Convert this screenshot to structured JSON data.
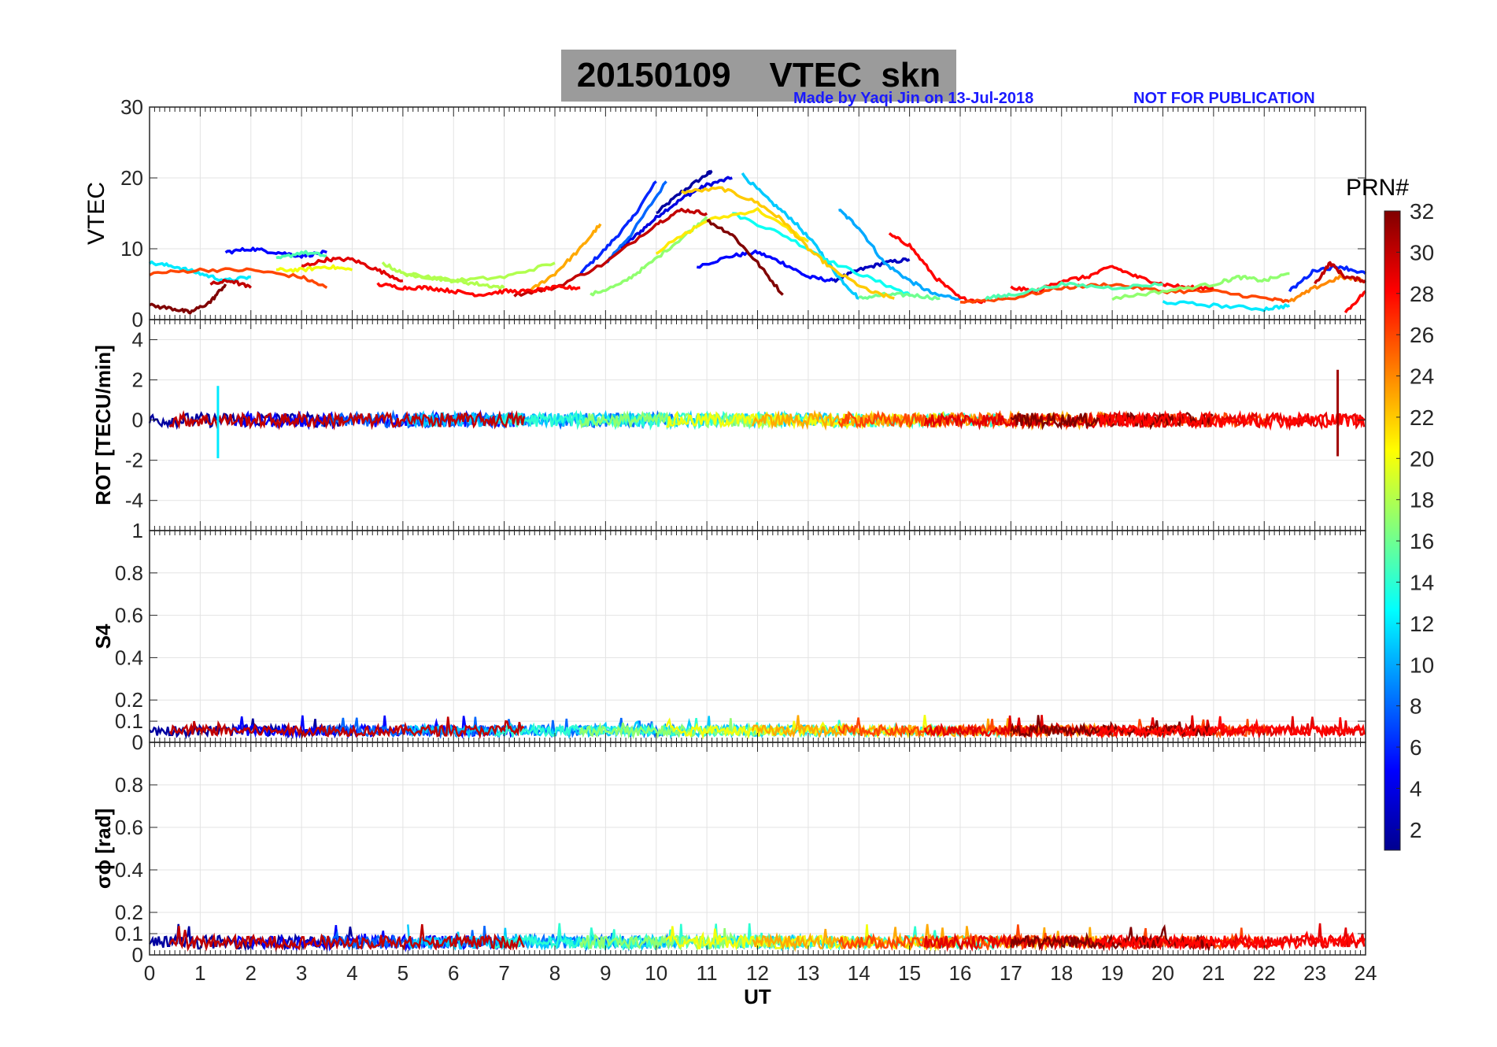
{
  "header": {
    "title": "20150109    VTEC  skn",
    "made_by": "Made by Yaqi Jin on 13-Jul-2018",
    "not_for_publication": "NOT FOR PUBLICATION"
  },
  "chart_data": [
    {
      "type": "line",
      "panel": "vtec",
      "ylabel": "VTEC",
      "ylim": [
        0,
        30
      ],
      "yticks": [
        "0",
        "10",
        "20",
        "30"
      ],
      "grid": true,
      "series": [
        {
          "prn": 2,
          "x": [
            10.0,
            10.5,
            11.0,
            11.1
          ],
          "y": [
            15.0,
            18.0,
            20.5,
            21.0
          ]
        },
        {
          "prn": 4,
          "x": [
            9.3,
            9.7,
            10.1,
            10.6,
            11.0,
            11.5
          ],
          "y": [
            10.0,
            12.5,
            15.0,
            17.5,
            19.0,
            20.0
          ]
        },
        {
          "prn": 6,
          "x": [
            8.5,
            9.0,
            9.5,
            10.0
          ],
          "y": [
            6.5,
            10.0,
            14.0,
            19.5
          ]
        },
        {
          "prn": 8,
          "x": [
            9.0,
            9.5,
            10.2
          ],
          "y": [
            8.0,
            12.0,
            19.5
          ]
        },
        {
          "prn": 5,
          "x": [
            10.8,
            11.5,
            12.0,
            12.5,
            13.0,
            13.5
          ],
          "y": [
            7.5,
            9.0,
            9.5,
            8.0,
            6.0,
            5.5
          ]
        },
        {
          "prn": 3,
          "x": [
            13.5,
            14.0,
            14.5,
            15.0
          ],
          "y": [
            5.5,
            7.0,
            8.0,
            8.5
          ]
        },
        {
          "prn": 10,
          "x": [
            13.6,
            14.0,
            14.5,
            15.0,
            15.5,
            16.0
          ],
          "y": [
            15.5,
            13.0,
            8.0,
            5.5,
            3.5,
            3.0
          ]
        },
        {
          "prn": 11,
          "x": [
            11.7,
            12.2,
            12.7,
            13.2,
            13.6,
            14.0
          ],
          "y": [
            20.5,
            17.0,
            14.0,
            10.0,
            6.0,
            3.0
          ]
        },
        {
          "prn": 13,
          "x": [
            11.5,
            12.5,
            13.5,
            14.5,
            15.0
          ],
          "y": [
            15.0,
            12.0,
            8.0,
            5.0,
            3.5
          ]
        },
        {
          "prn": 16,
          "x": [
            14.0,
            14.5,
            15.0,
            15.6
          ],
          "y": [
            3.0,
            3.5,
            3.5,
            3.0
          ]
        },
        {
          "prn": 17,
          "x": [
            8.7,
            9.3,
            9.8,
            10.5,
            11.0
          ],
          "y": [
            3.5,
            5.0,
            7.5,
            11.5,
            14.5
          ]
        },
        {
          "prn": 21,
          "x": [
            10.0,
            11.0,
            12.0,
            13.0
          ],
          "y": [
            9.5,
            14.0,
            15.5,
            11.0
          ]
        },
        {
          "prn": 22,
          "x": [
            10.5,
            11.3,
            12.0,
            12.5,
            13.0,
            13.5,
            14.2,
            14.7
          ],
          "y": [
            18.0,
            18.5,
            16.5,
            14.0,
            10.0,
            7.0,
            4.0,
            3.0
          ]
        },
        {
          "prn": 23,
          "x": [
            7.5,
            8.0,
            8.5,
            8.9
          ],
          "y": [
            4.0,
            6.5,
            10.0,
            13.5
          ]
        },
        {
          "prn": 28,
          "x": [
            14.6,
            15.0,
            15.5,
            16.0,
            16.5
          ],
          "y": [
            12.0,
            10.5,
            6.0,
            3.0,
            2.5
          ]
        },
        {
          "prn": 32,
          "x": [
            11.0,
            11.5,
            12.0,
            12.5
          ],
          "y": [
            14.0,
            12.0,
            8.0,
            3.5
          ]
        },
        {
          "prn": 30,
          "x": [
            7.2,
            8.0,
            9.0,
            10.0,
            10.5,
            11.0
          ],
          "y": [
            3.5,
            4.5,
            8.0,
            13.5,
            15.5,
            15.0
          ]
        },
        {
          "prn": 12,
          "x": [
            0.0,
            0.5,
            1.0,
            1.5,
            2.0
          ],
          "y": [
            8.0,
            7.5,
            6.5,
            5.5,
            6.0
          ]
        },
        {
          "prn": 5,
          "x": [
            1.5,
            2.0,
            2.5,
            3.0,
            3.5
          ],
          "y": [
            9.5,
            10.0,
            9.5,
            9.0,
            9.5
          ]
        },
        {
          "prn": 15,
          "x": [
            2.5,
            3.0,
            3.5
          ],
          "y": [
            8.5,
            9.5,
            9.0
          ]
        },
        {
          "prn": 20,
          "x": [
            2.5,
            3.0,
            3.5,
            4.0
          ],
          "y": [
            7.0,
            7.0,
            7.5,
            7.0
          ]
        },
        {
          "prn": 26,
          "x": [
            0.0,
            1.0,
            2.0,
            3.0,
            3.5
          ],
          "y": [
            6.5,
            7.0,
            7.0,
            6.0,
            4.5
          ]
        },
        {
          "prn": 29,
          "x": [
            3.0,
            3.5,
            4.0,
            4.5,
            5.0
          ],
          "y": [
            7.5,
            8.5,
            8.5,
            7.0,
            5.5
          ]
        },
        {
          "prn": 32,
          "x": [
            0.0,
            0.5,
            0.8,
            1.2,
            1.5
          ],
          "y": [
            2.0,
            1.5,
            1.0,
            2.5,
            5.0
          ]
        },
        {
          "prn": 30,
          "x": [
            1.2,
            1.6,
            2.0
          ],
          "y": [
            5.0,
            5.5,
            4.5
          ]
        },
        {
          "prn": 18,
          "x": [
            4.6,
            5.0,
            5.5,
            6.0,
            6.5,
            7.0
          ],
          "y": [
            8.0,
            6.5,
            6.0,
            5.5,
            5.0,
            4.5
          ]
        },
        {
          "prn": 18,
          "x": [
            5.0,
            6.0,
            7.0,
            8.0
          ],
          "y": [
            6.5,
            5.5,
            6.0,
            8.0
          ]
        },
        {
          "prn": 28,
          "x": [
            4.5,
            5.0,
            5.5,
            6.0,
            6.5,
            7.0,
            7.5,
            8.0,
            8.5
          ],
          "y": [
            5.0,
            4.5,
            4.5,
            4.0,
            3.5,
            4.0,
            4.0,
            4.5,
            4.5
          ]
        },
        {
          "prn": 26,
          "x": [
            16.0,
            17.0,
            18.0,
            19.0,
            20.0,
            21.0,
            22.0,
            22.5
          ],
          "y": [
            2.5,
            3.0,
            4.5,
            5.0,
            4.0,
            4.0,
            3.0,
            2.5
          ]
        },
        {
          "prn": 28,
          "x": [
            17.0,
            17.5,
            18.0,
            18.5,
            19.0,
            19.5,
            20.0,
            20.5,
            21.0
          ],
          "y": [
            4.5,
            4.0,
            5.5,
            6.0,
            7.5,
            6.0,
            5.0,
            4.5,
            4.5
          ]
        },
        {
          "prn": 15,
          "x": [
            16.5,
            17.0,
            18.0,
            19.0,
            20.0
          ],
          "y": [
            3.0,
            3.5,
            5.0,
            4.5,
            5.0
          ]
        },
        {
          "prn": 17,
          "x": [
            19.0,
            20.0,
            21.0,
            21.5,
            22.0,
            22.5
          ],
          "y": [
            3.0,
            4.0,
            5.0,
            6.0,
            5.5,
            6.5
          ]
        },
        {
          "prn": 12,
          "x": [
            20.0,
            21.0,
            22.0,
            22.5
          ],
          "y": [
            2.5,
            2.0,
            1.5,
            2.0
          ]
        },
        {
          "prn": 6,
          "x": [
            22.5,
            23.0,
            23.5,
            24.0
          ],
          "y": [
            4.0,
            7.0,
            7.5,
            6.5
          ]
        },
        {
          "prn": 24,
          "x": [
            22.5,
            23.0,
            23.5,
            24.0
          ],
          "y": [
            2.5,
            4.5,
            6.0,
            5.5
          ]
        },
        {
          "prn": 30,
          "x": [
            23.0,
            23.3,
            23.6,
            24.0
          ],
          "y": [
            5.0,
            8.0,
            6.0,
            5.5
          ]
        },
        {
          "prn": 28,
          "x": [
            23.6,
            24.0
          ],
          "y": [
            1.0,
            4.0
          ]
        }
      ]
    },
    {
      "type": "line",
      "panel": "rot",
      "ylabel": "ROT [TECU/min]",
      "ylim": [
        -5.5,
        5
      ],
      "yticks": [
        "-4",
        "-2",
        "0",
        "2",
        "4"
      ],
      "grid": true,
      "description_values": {
        "baseline": 0,
        "typical_amplitude": 0.3,
        "spikes": [
          {
            "x": 1.35,
            "y": 1.7
          },
          {
            "x": 1.35,
            "y": -1.9
          },
          {
            "x": 23.45,
            "y": 2.5
          },
          {
            "x": 23.45,
            "y": -1.8
          }
        ]
      }
    },
    {
      "type": "line",
      "panel": "s4",
      "ylabel": "S4",
      "ylim": [
        0,
        1
      ],
      "yticks": [
        "0",
        "0.1",
        "0.2",
        "0.4",
        "0.6",
        "0.8",
        "1"
      ],
      "grid": true,
      "description_values": {
        "baseline": 0.05,
        "typical_max": 0.12
      }
    },
    {
      "type": "line",
      "panel": "sigma_phi",
      "ylabel": "σϕ [rad]",
      "ylim": [
        0,
        1
      ],
      "yticks": [
        "0",
        "0.1",
        "0.2",
        "0.4",
        "0.6",
        "0.8"
      ],
      "xlabel": "UT",
      "xlim": [
        0,
        24
      ],
      "xticks": [
        "0",
        "1",
        "2",
        "3",
        "4",
        "5",
        "6",
        "7",
        "8",
        "9",
        "10",
        "11",
        "12",
        "13",
        "14",
        "15",
        "16",
        "17",
        "18",
        "19",
        "20",
        "21",
        "22",
        "23",
        "24"
      ],
      "grid": true,
      "description_values": {
        "baseline": 0.06,
        "typical_max": 0.2
      }
    }
  ],
  "colorbar": {
    "label": "PRN#",
    "range": [
      1,
      32
    ],
    "ticks": [
      "2",
      "4",
      "6",
      "8",
      "10",
      "12",
      "14",
      "16",
      "18",
      "20",
      "22",
      "24",
      "26",
      "28",
      "30",
      "32"
    ],
    "colormap": "jet"
  }
}
